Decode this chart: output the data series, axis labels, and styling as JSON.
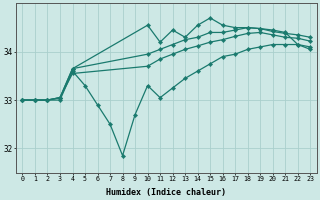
{
  "xlabel": "Humidex (Indice chaleur)",
  "background_color": "#cde8e5",
  "grid_color": "#aacfcc",
  "line_color": "#1a7a6e",
  "xlim": [
    -0.5,
    23.5
  ],
  "ylim": [
    31.5,
    35.0
  ],
  "yticks": [
    32,
    33,
    34
  ],
  "xticks": [
    0,
    1,
    2,
    3,
    4,
    5,
    6,
    7,
    8,
    9,
    10,
    11,
    12,
    13,
    14,
    15,
    16,
    17,
    18,
    19,
    20,
    21,
    22,
    23
  ],
  "series": [
    {
      "x": [
        0,
        1,
        2,
        3,
        4,
        5,
        6,
        7,
        8,
        9,
        10,
        11,
        12,
        13,
        14,
        15,
        16,
        17,
        18,
        19,
        20,
        21,
        22,
        23
      ],
      "y": [
        33.0,
        33.0,
        33.0,
        33.0,
        33.6,
        33.3,
        32.9,
        32.5,
        31.85,
        32.7,
        33.3,
        33.05,
        33.25,
        33.45,
        33.6,
        33.75,
        33.9,
        33.95,
        34.05,
        34.1,
        34.15,
        34.15,
        34.15,
        34.1
      ]
    },
    {
      "x": [
        0,
        1,
        2,
        3,
        4,
        10,
        11,
        12,
        13,
        14,
        15,
        16,
        17,
        18,
        19,
        20,
        21,
        22,
        23
      ],
      "y": [
        33.0,
        33.0,
        33.0,
        33.05,
        33.65,
        34.55,
        34.2,
        34.45,
        34.3,
        34.55,
        34.7,
        34.55,
        34.5,
        34.5,
        34.48,
        34.45,
        34.4,
        34.15,
        34.05
      ]
    },
    {
      "x": [
        0,
        1,
        2,
        3,
        4,
        10,
        11,
        12,
        13,
        14,
        15,
        16,
        17,
        18,
        19,
        20,
        21,
        22,
        23
      ],
      "y": [
        33.0,
        33.0,
        33.0,
        33.05,
        33.65,
        33.95,
        34.05,
        34.15,
        34.25,
        34.3,
        34.4,
        34.4,
        34.45,
        34.5,
        34.48,
        34.42,
        34.38,
        34.35,
        34.3
      ]
    },
    {
      "x": [
        0,
        1,
        2,
        3,
        4,
        10,
        11,
        12,
        13,
        14,
        15,
        16,
        17,
        18,
        19,
        20,
        21,
        22,
        23
      ],
      "y": [
        33.0,
        33.0,
        33.0,
        33.05,
        33.55,
        33.7,
        33.85,
        33.95,
        34.05,
        34.12,
        34.2,
        34.25,
        34.32,
        34.38,
        34.4,
        34.35,
        34.3,
        34.28,
        34.22
      ]
    }
  ]
}
